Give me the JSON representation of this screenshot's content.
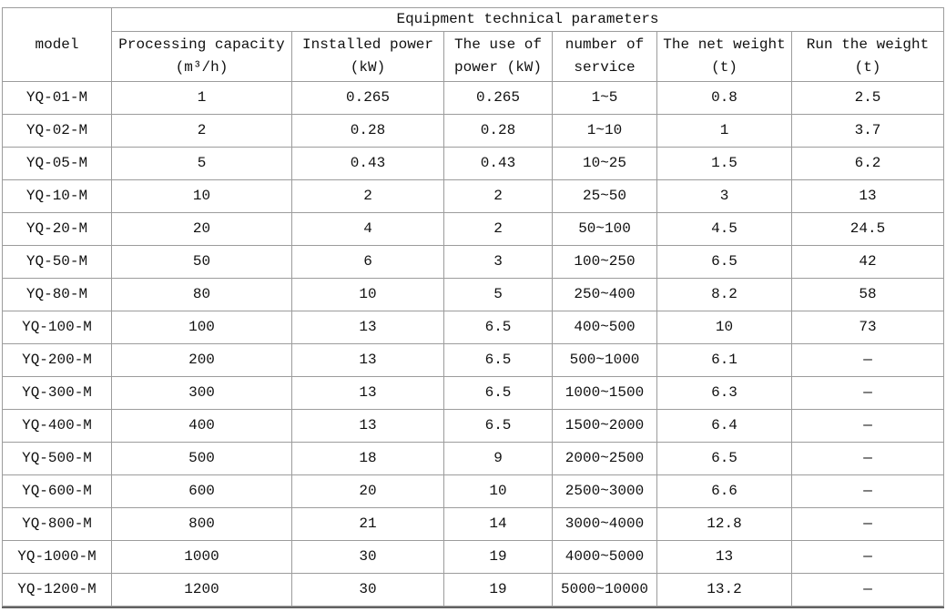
{
  "table": {
    "title": "Equipment technical parameters",
    "model_header": "model",
    "columns": [
      {
        "line1": "Processing capacity",
        "line2": "(m³/h)"
      },
      {
        "line1": "Installed power",
        "line2": "(kW)"
      },
      {
        "line1": "The use of",
        "line2": "power (kW)"
      },
      {
        "line1": "number of",
        "line2": "service"
      },
      {
        "line1": "The net weight",
        "line2": "(t)"
      },
      {
        "line1": "Run the weight",
        "line2": "(t)"
      }
    ],
    "rows": [
      [
        "YQ-01-M",
        "1",
        "0.265",
        "0.265",
        "1~5",
        "0.8",
        "2.5"
      ],
      [
        "YQ-02-M",
        "2",
        "0.28",
        "0.28",
        "1~10",
        "1",
        "3.7"
      ],
      [
        "YQ-05-M",
        "5",
        "0.43",
        "0.43",
        "10~25",
        "1.5",
        "6.2"
      ],
      [
        "YQ-10-M",
        "10",
        "2",
        "2",
        "25~50",
        "3",
        "13"
      ],
      [
        "YQ-20-M",
        "20",
        "4",
        "2",
        "50~100",
        "4.5",
        "24.5"
      ],
      [
        "YQ-50-M",
        "50",
        "6",
        "3",
        "100~250",
        "6.5",
        "42"
      ],
      [
        "YQ-80-M",
        "80",
        "10",
        "5",
        "250~400",
        "8.2",
        "58"
      ],
      [
        "YQ-100-M",
        "100",
        "13",
        "6.5",
        "400~500",
        "10",
        "73"
      ],
      [
        "YQ-200-M",
        "200",
        "13",
        "6.5",
        "500~1000",
        "6.1",
        "—"
      ],
      [
        "YQ-300-M",
        "300",
        "13",
        "6.5",
        "1000~1500",
        "6.3",
        "—"
      ],
      [
        "YQ-400-M",
        "400",
        "13",
        "6.5",
        "1500~2000",
        "6.4",
        "—"
      ],
      [
        "YQ-500-M",
        "500",
        "18",
        "9",
        "2000~2500",
        "6.5",
        "—"
      ],
      [
        "YQ-600-M",
        "600",
        "20",
        "10",
        "2500~3000",
        "6.6",
        "—"
      ],
      [
        "YQ-800-M",
        "800",
        "21",
        "14",
        "3000~4000",
        "12.8",
        "—"
      ],
      [
        "YQ-1000-M",
        "1000",
        "30",
        "19",
        "4000~5000",
        "13",
        "—"
      ],
      [
        "YQ-1200-M",
        "1200",
        "30",
        "19",
        "5000~10000",
        "13.2",
        "—"
      ]
    ]
  },
  "colors": {
    "background": "#ffffff",
    "grid_line": "#9c9c9c",
    "outer_border": "#8a8a8a",
    "text": "#111111"
  }
}
